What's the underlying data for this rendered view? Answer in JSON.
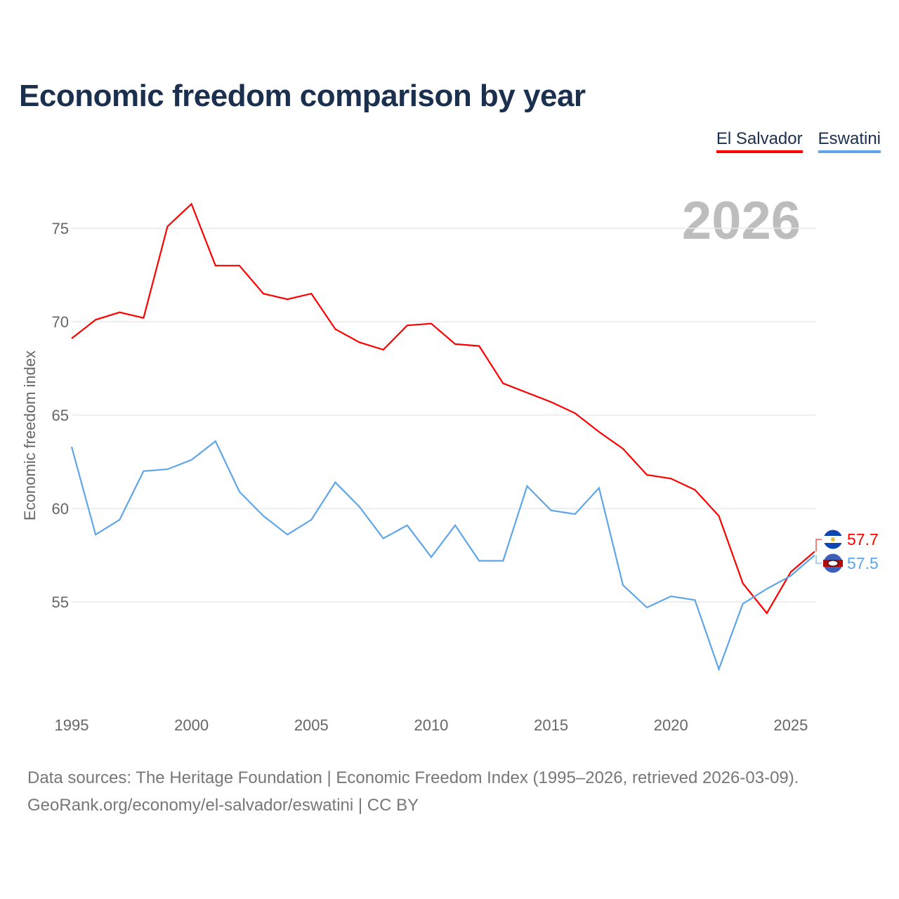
{
  "title": "Economic freedom comparison by year",
  "legend": [
    {
      "label": "El Salvador",
      "color": "#ff0000"
    },
    {
      "label": "Eswatini",
      "color": "#5ea5ea"
    }
  ],
  "footer": {
    "line1": "Data sources: The Heritage Foundation | Economic Freedom Index (1995–2026, retrieved 2026-03-09).",
    "line2": "GeoRank.org/economy/el-salvador/eswatini | CC BY"
  },
  "chart_data": {
    "type": "line",
    "title": "Economic freedom comparison by year",
    "ylabel": "Economic freedom index",
    "xlabel": "",
    "current_year_label": "2026",
    "x": [
      1995,
      1996,
      1997,
      1998,
      1999,
      2000,
      2001,
      2002,
      2003,
      2004,
      2005,
      2006,
      2007,
      2008,
      2009,
      2010,
      2011,
      2012,
      2013,
      2014,
      2015,
      2016,
      2017,
      2018,
      2019,
      2020,
      2021,
      2022,
      2023,
      2024,
      2025,
      2026
    ],
    "xticks": [
      1995,
      2000,
      2005,
      2010,
      2015,
      2020,
      2025
    ],
    "yticks": [
      55,
      60,
      65,
      70,
      75
    ],
    "xlim": [
      1995,
      2026
    ],
    "ylim": [
      49.5,
      78
    ],
    "grid": true,
    "legend_position": "top-right",
    "series": [
      {
        "name": "El Salvador",
        "color": "#ff0000",
        "end_label": "57.7",
        "values": [
          69.1,
          70.1,
          70.5,
          70.2,
          75.1,
          76.3,
          73.0,
          73.0,
          71.5,
          71.2,
          71.5,
          69.6,
          68.9,
          68.5,
          69.8,
          69.9,
          68.8,
          68.7,
          66.7,
          66.2,
          65.7,
          65.1,
          64.1,
          63.2,
          61.8,
          61.6,
          61.0,
          59.6,
          56.0,
          54.4,
          56.6,
          57.7
        ]
      },
      {
        "name": "Eswatini",
        "color": "#5ea5ea",
        "end_label": "57.5",
        "values": [
          63.3,
          58.6,
          59.4,
          62.0,
          62.1,
          62.6,
          63.6,
          60.9,
          59.6,
          58.6,
          59.4,
          61.4,
          60.1,
          58.4,
          59.1,
          57.4,
          59.1,
          57.2,
          57.2,
          61.2,
          59.9,
          59.7,
          61.1,
          55.9,
          54.7,
          55.3,
          55.1,
          51.4,
          54.9,
          55.7,
          56.4,
          57.5
        ]
      }
    ]
  }
}
